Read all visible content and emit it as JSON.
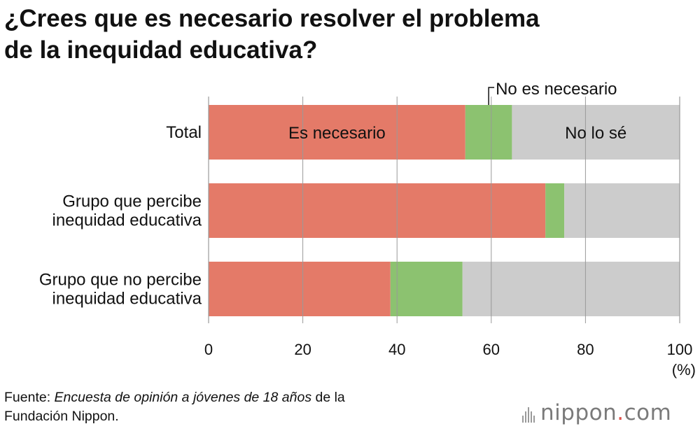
{
  "title": {
    "line1": "¿Crees que es necesario resolver el problema",
    "line2": "de la inequidad educativa?"
  },
  "chart_data": {
    "type": "bar",
    "orientation": "horizontal",
    "stacked": true,
    "categories": [
      [
        "Total"
      ],
      [
        "Grupo que percibe",
        "inequidad educativa"
      ],
      [
        "Grupo que no percibe",
        "inequidad educativa"
      ]
    ],
    "series": [
      {
        "name": "Es necesario",
        "color": "#e47a68",
        "values": [
          54.5,
          71.5,
          38.6
        ]
      },
      {
        "name": "No es necesario",
        "color": "#8cc270",
        "values": [
          9.9,
          4.0,
          15.3
        ]
      },
      {
        "name": "No lo sé",
        "color": "#cccccc",
        "values": [
          35.6,
          24.5,
          46.1
        ]
      }
    ],
    "xlim": [
      0,
      100
    ],
    "xticks": [
      "0",
      "20",
      "40",
      "60",
      "80",
      "100"
    ],
    "xtick_values": [
      0,
      20,
      40,
      60,
      80,
      100
    ],
    "xunit": "(%)",
    "grid": true,
    "inline_labels": {
      "es_necesario": "Es necesario",
      "no_lo_se": "No lo sé",
      "no_es_necesario": "No es necesario"
    }
  },
  "source": {
    "prefix": "Fuente: ",
    "italic": "Encuesta de opinión a jóvenes de 18 años",
    "suffix_line1": " de la",
    "line2": "Fundación Nippon."
  },
  "logo": {
    "word": "nippon",
    "dot": ".",
    "tld": "com"
  }
}
